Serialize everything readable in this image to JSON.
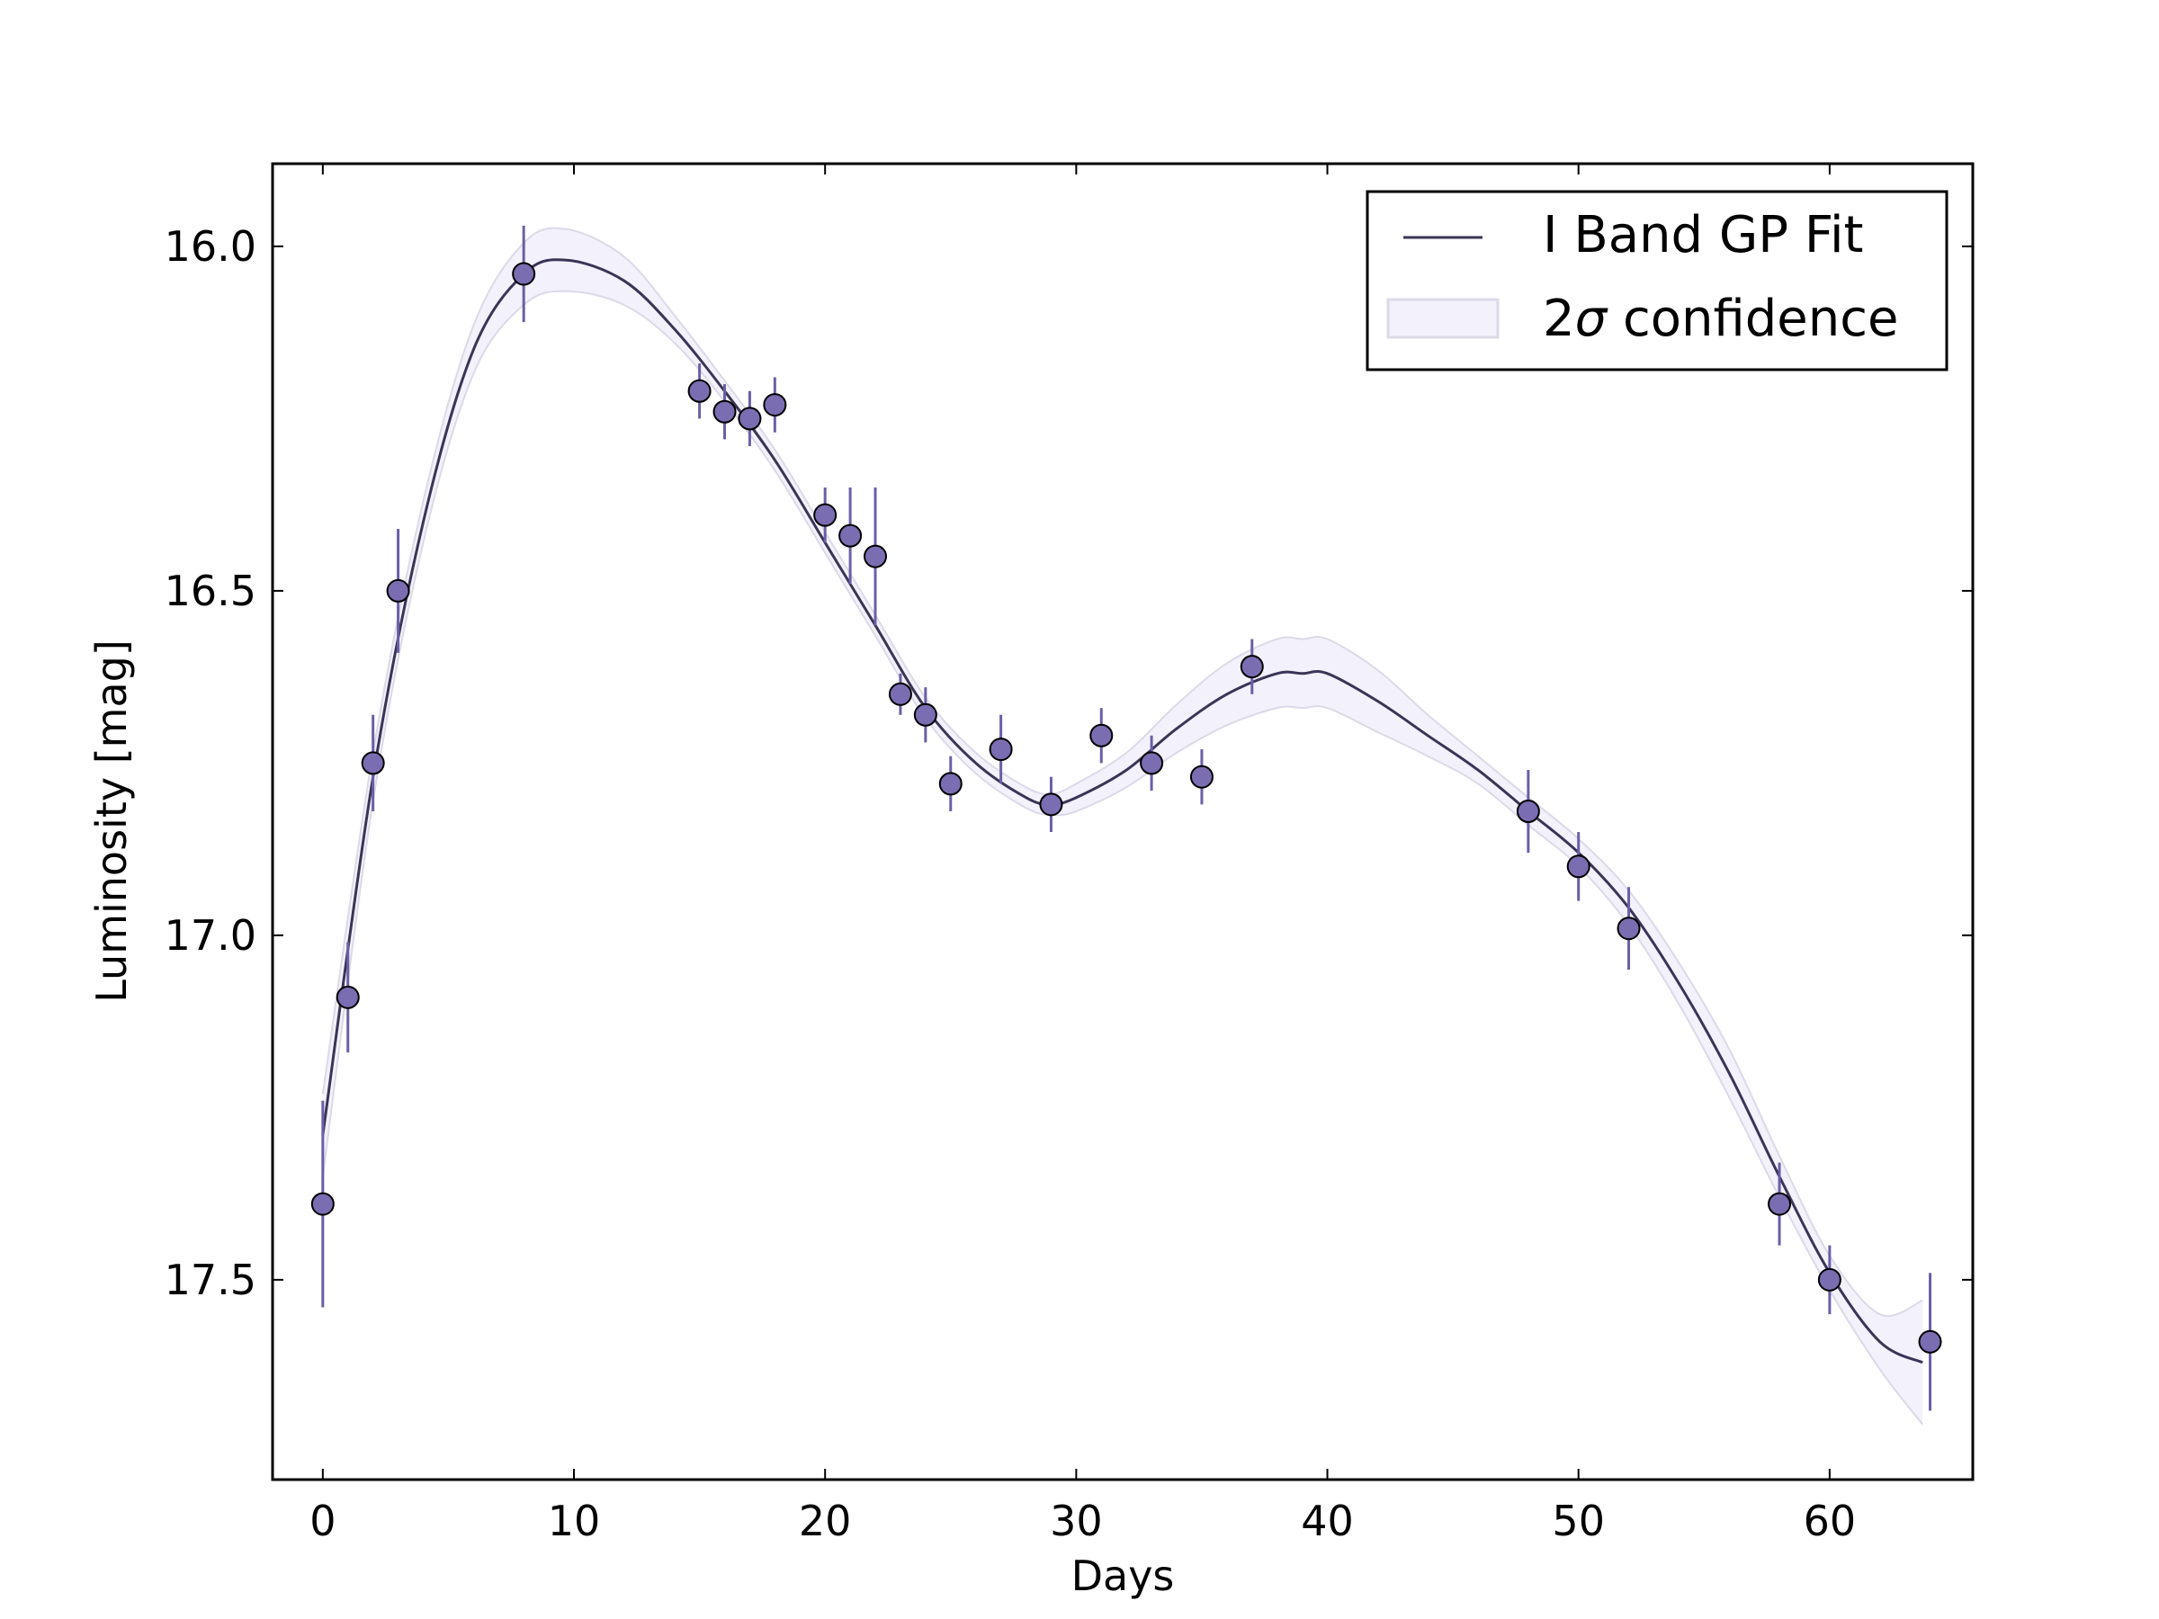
{
  "chart_data": {
    "type": "scatter",
    "title": "",
    "xlabel": "Days",
    "ylabel": "Luminosity [mag]",
    "xlim": [
      -2,
      65.7
    ],
    "ylim": [
      17.79,
      15.88
    ],
    "y_inverted": true,
    "grid": false,
    "legend_position": "top-right",
    "x_ticks": [
      0,
      10,
      20,
      30,
      40,
      50,
      60
    ],
    "x_tick_labels": [
      "0",
      "10",
      "20",
      "30",
      "40",
      "50",
      "60"
    ],
    "y_ticks": [
      16.0,
      16.5,
      17.0,
      17.5
    ],
    "y_tick_labels": [
      "16.0",
      "16.5",
      "17.0",
      "17.5"
    ],
    "legend": {
      "fit_label": "I Band GP Fit",
      "band_label_prefix": "2",
      "band_label_symbol": "σ",
      "band_label_suffix": " confidence"
    },
    "colors": {
      "fit_line": "#3b3457",
      "band_fill": "#f3f1fb",
      "band_edge": "#dcd9e8",
      "marker_fill": "#7b6db1",
      "error_bar": "#6a5fa8"
    },
    "observations": {
      "x": [
        0,
        1,
        2,
        3,
        8,
        15,
        16,
        17,
        18,
        20,
        21,
        22,
        23,
        24,
        25,
        27,
        29,
        31,
        33,
        35,
        37,
        48,
        50,
        52,
        58,
        60,
        64
      ],
      "y": [
        17.39,
        17.09,
        16.75,
        16.5,
        16.04,
        16.21,
        16.24,
        16.25,
        16.23,
        16.39,
        16.42,
        16.45,
        16.65,
        16.68,
        16.78,
        16.73,
        16.81,
        16.71,
        16.75,
        16.77,
        16.61,
        16.82,
        16.9,
        16.99,
        17.39,
        17.5,
        17.59
      ],
      "err": [
        0.15,
        0.08,
        0.07,
        0.09,
        0.07,
        0.04,
        0.04,
        0.04,
        0.04,
        0.04,
        0.07,
        0.1,
        0.03,
        0.04,
        0.04,
        0.05,
        0.04,
        0.04,
        0.04,
        0.04,
        0.04,
        0.06,
        0.05,
        0.06,
        0.06,
        0.05,
        0.1
      ]
    },
    "gp_fit": {
      "x": [
        0,
        2,
        4,
        6,
        8,
        9.7,
        12,
        14,
        16,
        18,
        20,
        22,
        24,
        26,
        28,
        29,
        30,
        32,
        34,
        36,
        38,
        39,
        40,
        42,
        44,
        46,
        48,
        50,
        52,
        54,
        56,
        58,
        60,
        62,
        63.7
      ],
      "y": [
        17.29,
        16.77,
        16.4,
        16.15,
        16.04,
        16.02,
        16.05,
        16.12,
        16.21,
        16.31,
        16.43,
        16.55,
        16.67,
        16.75,
        16.8,
        16.81,
        16.8,
        16.76,
        16.7,
        16.65,
        16.62,
        16.62,
        16.62,
        16.66,
        16.71,
        16.76,
        16.82,
        16.88,
        16.96,
        17.07,
        17.2,
        17.35,
        17.49,
        17.59,
        17.62
      ]
    },
    "confidence_band": {
      "x": [
        0,
        2,
        4,
        6,
        8,
        9.7,
        12,
        14,
        16,
        18,
        20,
        22,
        24,
        26,
        28,
        29,
        30,
        32,
        34,
        36,
        38,
        39,
        40,
        42,
        44,
        46,
        48,
        50,
        52,
        54,
        56,
        58,
        60,
        62,
        63.7
      ],
      "half_width": [
        0.06,
        0.035,
        0.03,
        0.035,
        0.045,
        0.045,
        0.035,
        0.02,
        0.015,
        0.015,
        0.015,
        0.015,
        0.015,
        0.015,
        0.015,
        0.015,
        0.02,
        0.025,
        0.035,
        0.045,
        0.05,
        0.05,
        0.05,
        0.045,
        0.03,
        0.02,
        0.02,
        0.02,
        0.025,
        0.03,
        0.035,
        0.03,
        0.025,
        0.04,
        0.09
      ]
    }
  }
}
